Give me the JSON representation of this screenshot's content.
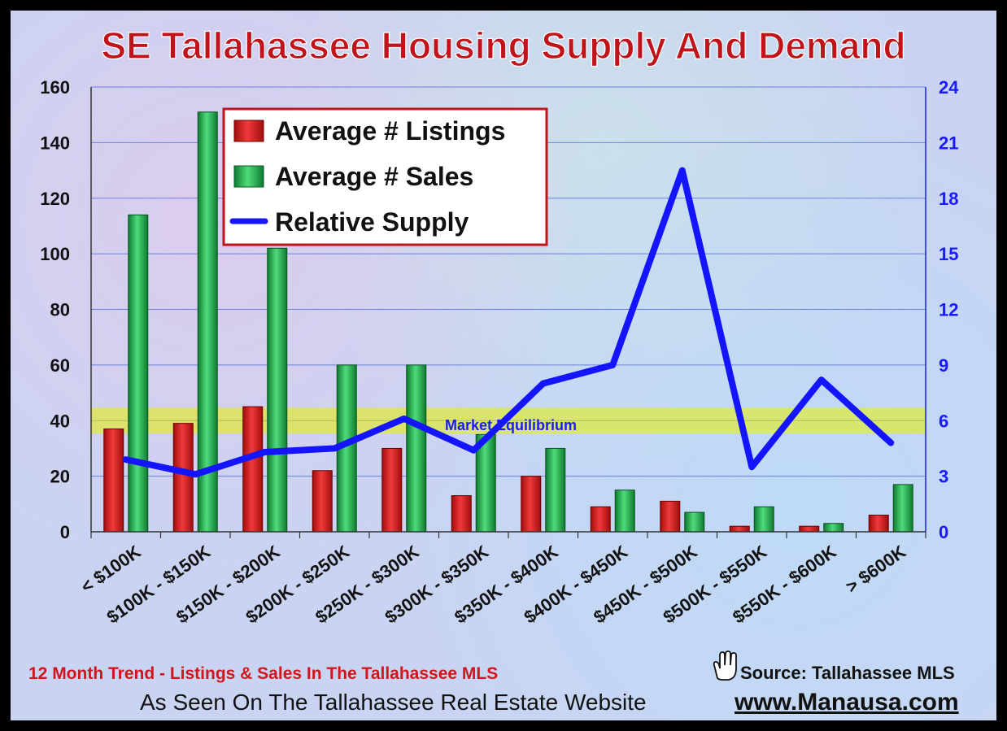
{
  "chart_data": {
    "type": "bar",
    "title": "SE Tallahassee Housing Supply And Demand",
    "categories": [
      "< $100K",
      "$100K - $150K",
      "$150K - $200K",
      "$200K - $250K",
      "$250K - $300K",
      "$300K - $350K",
      "$350K - $400K",
      "$400K - $450K",
      "$450K - $500K",
      "$500K - $550K",
      "$550K - $600K",
      "> $600K"
    ],
    "series": [
      {
        "name": "Average # Listings",
        "type": "bar",
        "axis": "left",
        "color": "#d41a1a",
        "values": [
          37,
          39,
          45,
          22,
          30,
          13,
          20,
          9,
          11,
          2,
          2,
          6
        ]
      },
      {
        "name": "Average # Sales",
        "type": "bar",
        "axis": "left",
        "color": "#22b24c",
        "values": [
          114,
          151,
          102,
          60,
          60,
          35,
          30,
          15,
          7,
          9,
          3,
          17
        ]
      },
      {
        "name": "Relative Supply",
        "type": "line",
        "axis": "right",
        "color": "#1414ff",
        "values": [
          3.9,
          3.1,
          4.3,
          4.5,
          6.1,
          4.4,
          8.0,
          9.0,
          19.5,
          3.5,
          8.2,
          4.8
        ]
      }
    ],
    "y_left": {
      "min": 0,
      "max": 160,
      "ticks": [
        0,
        20,
        40,
        60,
        80,
        100,
        120,
        140,
        160
      ]
    },
    "y_right": {
      "min": 0,
      "max": 24,
      "ticks": [
        0,
        3,
        6,
        9,
        12,
        15,
        18,
        21,
        24
      ]
    },
    "equilibrium_band": {
      "label": "Market Equilibrium",
      "from": 5.3,
      "to": 6.7,
      "color": "#e8f000"
    },
    "grid": true,
    "legend_position": "top-left"
  },
  "footer": {
    "trend": "12 Month Trend - Listings & Sales In The Tallahassee MLS",
    "source": "Source: Tallahassee MLS",
    "seen_on": "As Seen On The Tallahassee Real Estate Website",
    "website": "www.Manausa.com",
    "hand_icon": "hand-pointer-icon"
  }
}
